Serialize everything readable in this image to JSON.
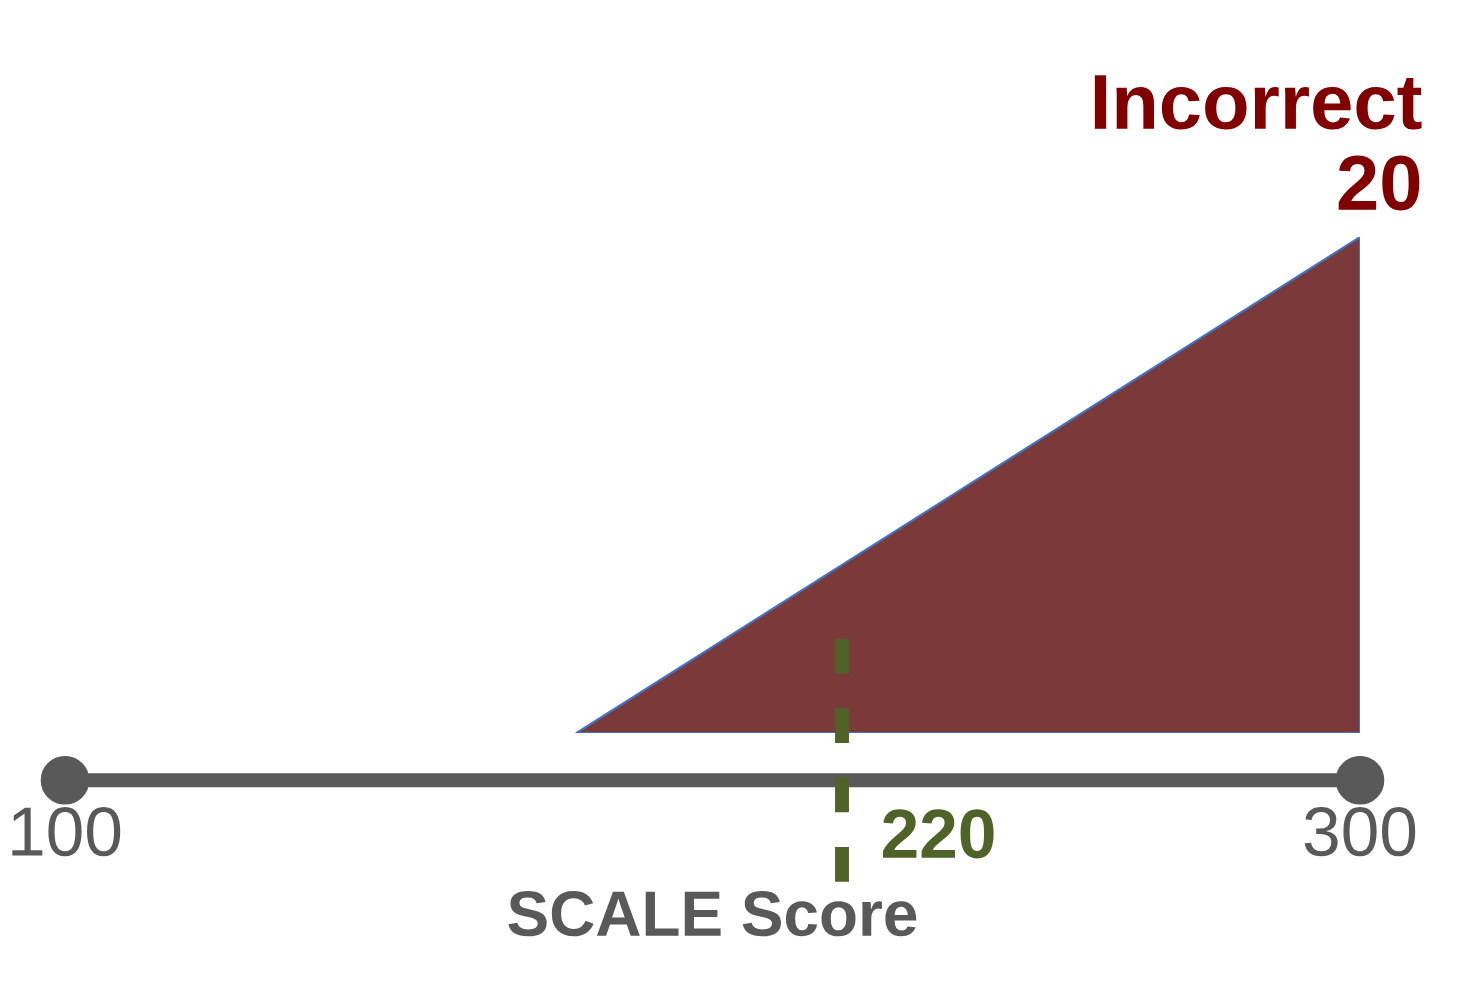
{
  "chart_data": {
    "type": "area",
    "xlabel": "SCALE Score",
    "x": [
      179,
      300
    ],
    "series": [
      {
        "name": "Incorrect",
        "color": "#7a3a3a",
        "values": [
          0,
          20
        ],
        "value_labels": [
          null,
          "20"
        ]
      }
    ],
    "xlim": [
      100,
      300
    ],
    "xticks": [
      100,
      300
    ],
    "ylim": [
      0,
      20
    ],
    "tick_labels": "x",
    "grid": false,
    "legend": false,
    "ref_lines": [
      {
        "axis": "x",
        "value": 220,
        "label": "220",
        "color": "#4f6228",
        "line_style": "dashed"
      }
    ]
  }
}
